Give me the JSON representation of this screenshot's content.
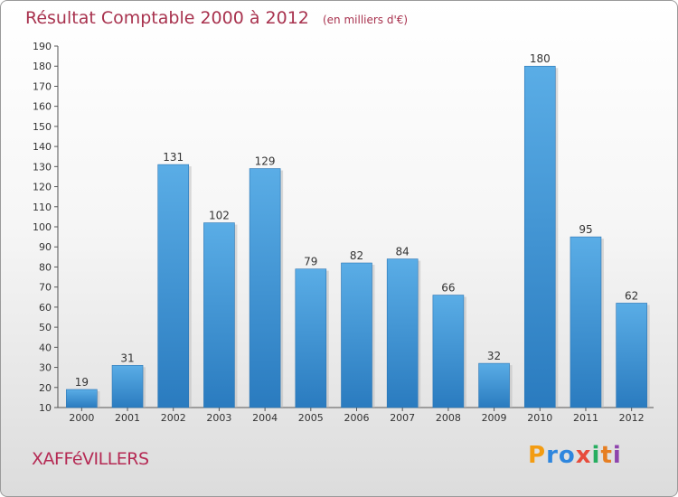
{
  "chart_data": {
    "type": "bar",
    "title": "Résultat Comptable 2000 à 2012",
    "subtitle": "(en milliers d'€)",
    "categories": [
      "2000",
      "2001",
      "2002",
      "2003",
      "2004",
      "2005",
      "2006",
      "2007",
      "2008",
      "2009",
      "2010",
      "2011",
      "2012"
    ],
    "values": [
      19,
      31,
      131,
      102,
      129,
      79,
      82,
      84,
      66,
      32,
      180,
      95,
      62
    ],
    "ylim": [
      10,
      190
    ],
    "yticks": [
      10,
      20,
      30,
      40,
      50,
      60,
      70,
      80,
      90,
      100,
      110,
      120,
      130,
      140,
      150,
      160,
      170,
      180,
      190
    ],
    "xlabel": "",
    "ylabel": "",
    "grid": false,
    "bar_color": "#4a9fdf"
  },
  "footer": {
    "commune": "XAFFéVILLERS",
    "brand_letters": [
      "P",
      "r",
      "o",
      "x",
      "i",
      "t",
      "i"
    ],
    "brand_colors": [
      "#f39c12",
      "#2e86de",
      "#2e86de",
      "#e74c3c",
      "#27ae60",
      "#e67e22",
      "#8e44ad"
    ]
  }
}
